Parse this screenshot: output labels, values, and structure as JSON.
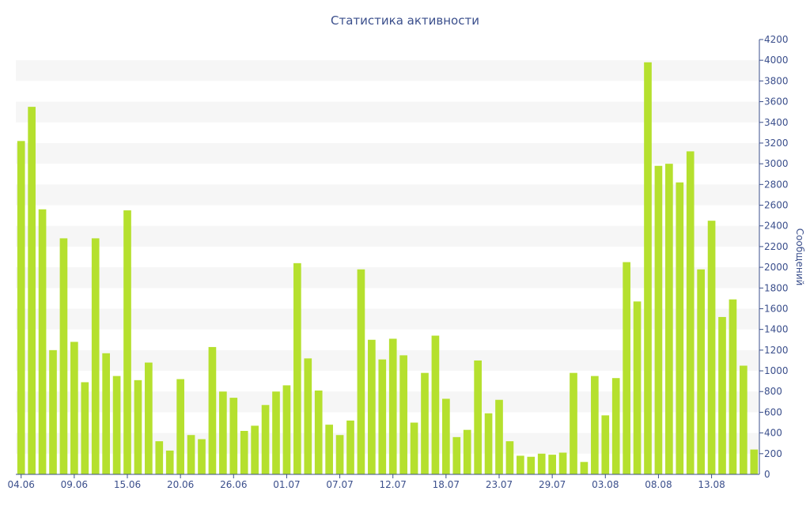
{
  "chart_data": {
    "type": "bar",
    "title": "Статистика активности",
    "xlabel": "",
    "ylabel": "Сообщений",
    "ylim": [
      0,
      4200
    ],
    "y_axis_side": "right",
    "y_ticks": [
      200,
      400,
      600,
      800,
      1000,
      1200,
      1400,
      1600,
      1800,
      2000,
      2200,
      2400,
      2600,
      2800,
      3000,
      3200,
      3400,
      3600,
      3800,
      4000,
      4200
    ],
    "x_tick_labels": [
      "04.06",
      "09.06",
      "15.06",
      "20.06",
      "26.06",
      "01.07",
      "07.07",
      "12.07",
      "18.07",
      "23.07",
      "29.07",
      "03.08",
      "08.08",
      "13.08"
    ],
    "grid": "alternating horizontal bands",
    "bar_color": "#b5e02e",
    "band_color": "#f6f6f6",
    "text_color": "#3b4f8c",
    "values": [
      3220,
      3550,
      2560,
      1200,
      2280,
      1280,
      890,
      2280,
      1170,
      950,
      2550,
      910,
      1080,
      320,
      230,
      920,
      380,
      340,
      1230,
      800,
      740,
      420,
      470,
      670,
      800,
      860,
      2040,
      1120,
      810,
      480,
      380,
      520,
      1980,
      1300,
      1110,
      1310,
      1150,
      500,
      980,
      1340,
      730,
      360,
      430,
      1100,
      590,
      720,
      320,
      180,
      170,
      200,
      190,
      210,
      980,
      120,
      950,
      570,
      930,
      2050,
      1670,
      3980,
      2980,
      3000,
      2820,
      3120,
      1980,
      2450,
      1520,
      1690,
      1050,
      240
    ]
  }
}
